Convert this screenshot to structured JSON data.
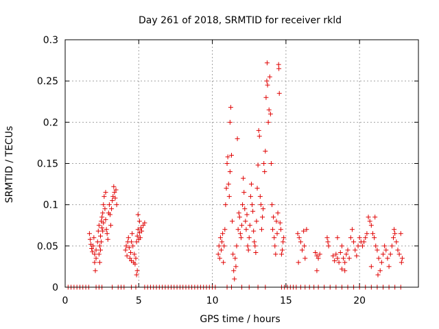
{
  "chart_data": {
    "type": "scatter",
    "title": "Day 261 of 2018, SRMTID for receiver rkld",
    "xlabel": "GPS time / hours",
    "ylabel": "SRMTID / TECUs",
    "xlim": [
      0,
      24
    ],
    "ylim": [
      0,
      0.3
    ],
    "xticks": [
      0,
      5,
      10,
      15,
      20
    ],
    "xtick_labels": [
      "0",
      "5",
      "10",
      "15",
      "20"
    ],
    "yticks": [
      0,
      0.05,
      0.1,
      0.15,
      0.2,
      0.25,
      0.3
    ],
    "ytick_labels": [
      "0",
      "0.05",
      "0.1",
      "0.15",
      "0.2",
      "0.25",
      "0.3"
    ],
    "grid": true,
    "marker": "plus",
    "series_color": "#e00000",
    "series": [
      {
        "name": "SRMTID",
        "points": [
          [
            0.2,
            0
          ],
          [
            0.4,
            0
          ],
          [
            0.6,
            0
          ],
          [
            0.8,
            0
          ],
          [
            1.0,
            0
          ],
          [
            1.2,
            0
          ],
          [
            1.4,
            0
          ],
          [
            1.6,
            0
          ],
          [
            2.1,
            0
          ],
          [
            2.3,
            0
          ],
          [
            2.5,
            0
          ],
          [
            3.2,
            0
          ],
          [
            3.6,
            0
          ],
          [
            3.8,
            0
          ],
          [
            4.0,
            0
          ],
          [
            4.5,
            0
          ],
          [
            4.8,
            0
          ],
          [
            5.4,
            0
          ],
          [
            5.6,
            0
          ],
          [
            5.8,
            0
          ],
          [
            6.0,
            0
          ],
          [
            6.2,
            0
          ],
          [
            6.4,
            0
          ],
          [
            6.6,
            0
          ],
          [
            6.8,
            0
          ],
          [
            7.0,
            0
          ],
          [
            7.2,
            0
          ],
          [
            7.4,
            0
          ],
          [
            7.6,
            0
          ],
          [
            7.8,
            0
          ],
          [
            8.0,
            0
          ],
          [
            8.2,
            0
          ],
          [
            8.4,
            0
          ],
          [
            8.6,
            0
          ],
          [
            8.8,
            0
          ],
          [
            9.0,
            0
          ],
          [
            9.2,
            0
          ],
          [
            9.4,
            0
          ],
          [
            9.6,
            0
          ],
          [
            9.8,
            0
          ],
          [
            10.0,
            0
          ],
          [
            10.2,
            0
          ],
          [
            11.0,
            0
          ],
          [
            11.3,
            0
          ],
          [
            12.0,
            0
          ],
          [
            12.5,
            0
          ],
          [
            13.1,
            0
          ],
          [
            13.6,
            0
          ],
          [
            14.7,
            0
          ],
          [
            14.9,
            0
          ],
          [
            15.1,
            0
          ],
          [
            15.3,
            0
          ],
          [
            15.5,
            0
          ],
          [
            15.7,
            0
          ],
          [
            16.0,
            0
          ],
          [
            16.3,
            0
          ],
          [
            16.6,
            0
          ],
          [
            16.9,
            0
          ],
          [
            17.2,
            0
          ],
          [
            17.6,
            0
          ],
          [
            18.0,
            0
          ],
          [
            18.4,
            0
          ],
          [
            18.8,
            0
          ],
          [
            19.2,
            0
          ],
          [
            19.6,
            0
          ],
          [
            20.0,
            0
          ],
          [
            20.4,
            0
          ],
          [
            20.8,
            0
          ],
          [
            21.2,
            0
          ],
          [
            21.6,
            0
          ],
          [
            22.0,
            0
          ],
          [
            22.4,
            0
          ],
          [
            22.8,
            0
          ],
          [
            1.65,
            0.065
          ],
          [
            1.7,
            0.058
          ],
          [
            1.75,
            0.052
          ],
          [
            1.8,
            0.047
          ],
          [
            1.85,
            0.043
          ],
          [
            1.9,
            0.05
          ],
          [
            1.95,
            0.06
          ],
          [
            2.0,
            0.04
          ],
          [
            2.0,
            0.03
          ],
          [
            2.05,
            0.02
          ],
          [
            2.1,
            0.045
          ],
          [
            2.1,
            0.035
          ],
          [
            2.2,
            0.055
          ],
          [
            2.25,
            0.068
          ],
          [
            2.3,
            0.075
          ],
          [
            2.35,
            0.05
          ],
          [
            2.4,
            0.062
          ],
          [
            2.45,
            0.08
          ],
          [
            2.5,
            0.072
          ],
          [
            2.5,
            0.085
          ],
          [
            2.55,
            0.09
          ],
          [
            2.6,
            0.1
          ],
          [
            2.6,
            0.078
          ],
          [
            2.65,
            0.11
          ],
          [
            2.7,
            0.095
          ],
          [
            2.75,
            0.082
          ],
          [
            2.8,
            0.07
          ],
          [
            2.85,
            0.065
          ],
          [
            2.9,
            0.058
          ],
          [
            2.95,
            0.09
          ],
          [
            3.0,
            0.1
          ],
          [
            3.05,
            0.088
          ],
          [
            3.1,
            0.075
          ],
          [
            3.15,
            0.095
          ],
          [
            3.2,
            0.105
          ],
          [
            3.25,
            0.11
          ],
          [
            3.3,
            0.122
          ],
          [
            3.35,
            0.115
          ],
          [
            3.4,
            0.108
          ],
          [
            3.45,
            0.118
          ],
          [
            3.5,
            0.1
          ],
          [
            2.3,
            0.04
          ],
          [
            2.35,
            0.03
          ],
          [
            2.4,
            0.045
          ],
          [
            2.45,
            0.055
          ],
          [
            2.55,
            0.068
          ],
          [
            2.75,
            0.115
          ],
          [
            4.1,
            0.045
          ],
          [
            4.15,
            0.05
          ],
          [
            4.2,
            0.038
          ],
          [
            4.25,
            0.055
          ],
          [
            4.3,
            0.06
          ],
          [
            4.35,
            0.048
          ],
          [
            4.4,
            0.035
          ],
          [
            4.45,
            0.042
          ],
          [
            4.5,
            0.055
          ],
          [
            4.55,
            0.065
          ],
          [
            4.6,
            0.05
          ],
          [
            4.65,
            0.03
          ],
          [
            4.7,
            0.04
          ],
          [
            4.75,
            0.028
          ],
          [
            4.8,
            0.035
          ],
          [
            4.85,
            0.055
          ],
          [
            4.9,
            0.062
          ],
          [
            4.95,
            0.07
          ],
          [
            5.0,
            0.058
          ],
          [
            5.05,
            0.066
          ],
          [
            5.1,
            0.06
          ],
          [
            5.15,
            0.072
          ],
          [
            5.2,
            0.068
          ],
          [
            5.3,
            0.075
          ],
          [
            5.4,
            0.078
          ],
          [
            4.95,
            0.088
          ],
          [
            5.05,
            0.08
          ],
          [
            4.9,
            0.02
          ],
          [
            4.85,
            0.015
          ],
          [
            4.5,
            0.032
          ],
          [
            10.4,
            0.04
          ],
          [
            10.45,
            0.05
          ],
          [
            10.5,
            0.035
          ],
          [
            10.55,
            0.06
          ],
          [
            10.6,
            0.045
          ],
          [
            10.65,
            0.055
          ],
          [
            10.7,
            0.065
          ],
          [
            10.75,
            0.03
          ],
          [
            10.8,
            0.05
          ],
          [
            10.85,
            0.07
          ],
          [
            10.9,
            0.1
          ],
          [
            10.95,
            0.12
          ],
          [
            11.0,
            0.15
          ],
          [
            11.05,
            0.158
          ],
          [
            11.1,
            0.125
          ],
          [
            11.15,
            0.11
          ],
          [
            11.2,
            0.2
          ],
          [
            11.25,
            0.218
          ],
          [
            11.2,
            0.14
          ],
          [
            11.3,
            0.16
          ],
          [
            11.35,
            0.08
          ],
          [
            11.4,
            0.04
          ],
          [
            11.45,
            0.02
          ],
          [
            11.5,
            0.01
          ],
          [
            11.55,
            0.035
          ],
          [
            11.6,
            0.025
          ],
          [
            11.65,
            0.05
          ],
          [
            11.7,
            0.18
          ],
          [
            11.75,
            0.07
          ],
          [
            11.8,
            0.09
          ],
          [
            11.85,
            0.085
          ],
          [
            11.9,
            0.065
          ],
          [
            11.95,
            0.06
          ],
          [
            12.0,
            0.075
          ],
          [
            12.05,
            0.1
          ],
          [
            12.1,
            0.132
          ],
          [
            12.15,
            0.115
          ],
          [
            12.2,
            0.095
          ],
          [
            12.25,
            0.08
          ],
          [
            12.3,
            0.07
          ],
          [
            12.35,
            0.088
          ],
          [
            12.4,
            0.05
          ],
          [
            12.45,
            0.045
          ],
          [
            12.5,
            0.06
          ],
          [
            12.55,
            0.075
          ],
          [
            12.6,
            0.11
          ],
          [
            12.65,
            0.125
          ],
          [
            12.7,
            0.1
          ],
          [
            12.75,
            0.092
          ],
          [
            12.8,
            0.068
          ],
          [
            12.85,
            0.055
          ],
          [
            12.9,
            0.05
          ],
          [
            12.95,
            0.042
          ],
          [
            13.0,
            0.08
          ],
          [
            13.05,
            0.12
          ],
          [
            13.1,
            0.148
          ],
          [
            13.15,
            0.19
          ],
          [
            13.2,
            0.183
          ],
          [
            13.25,
            0.11
          ],
          [
            13.3,
            0.1
          ],
          [
            13.35,
            0.07
          ],
          [
            13.4,
            0.085
          ],
          [
            13.45,
            0.095
          ],
          [
            13.5,
            0.15
          ],
          [
            13.55,
            0.14
          ],
          [
            13.6,
            0.165
          ],
          [
            13.65,
            0.23
          ],
          [
            13.7,
            0.25
          ],
          [
            13.72,
            0.272
          ],
          [
            13.75,
            0.245
          ],
          [
            13.8,
            0.2
          ],
          [
            13.85,
            0.215
          ],
          [
            13.9,
            0.255
          ],
          [
            13.95,
            0.21
          ],
          [
            14.0,
            0.15
          ],
          [
            14.05,
            0.1
          ],
          [
            14.1,
            0.07
          ],
          [
            14.15,
            0.085
          ],
          [
            14.2,
            0.06
          ],
          [
            14.25,
            0.05
          ],
          [
            14.3,
            0.04
          ],
          [
            14.35,
            0.08
          ],
          [
            14.4,
            0.065
          ],
          [
            14.45,
            0.09
          ],
          [
            14.5,
            0.27
          ],
          [
            14.52,
            0.265
          ],
          [
            14.55,
            0.235
          ],
          [
            14.6,
            0.078
          ],
          [
            14.65,
            0.07
          ],
          [
            14.7,
            0.04
          ],
          [
            14.75,
            0.045
          ],
          [
            14.8,
            0.055
          ],
          [
            14.85,
            0.06
          ],
          [
            15.8,
            0.065
          ],
          [
            15.9,
            0.06
          ],
          [
            16.0,
            0.055
          ],
          [
            16.1,
            0.045
          ],
          [
            16.2,
            0.068
          ],
          [
            16.25,
            0.05
          ],
          [
            16.3,
            0.035
          ],
          [
            15.85,
            0.03
          ],
          [
            16.4,
            0.07
          ],
          [
            17.0,
            0.042
          ],
          [
            17.1,
            0.038
          ],
          [
            17.2,
            0.035
          ],
          [
            17.3,
            0.04
          ],
          [
            17.1,
            0.02
          ],
          [
            17.8,
            0.06
          ],
          [
            17.85,
            0.055
          ],
          [
            17.9,
            0.05
          ],
          [
            18.2,
            0.038
          ],
          [
            18.3,
            0.032
          ],
          [
            18.4,
            0.04
          ],
          [
            18.5,
            0.035
          ],
          [
            18.6,
            0.03
          ],
          [
            18.7,
            0.042
          ],
          [
            18.8,
            0.05
          ],
          [
            18.9,
            0.035
          ],
          [
            19.0,
            0.03
          ],
          [
            19.1,
            0.04
          ],
          [
            19.2,
            0.045
          ],
          [
            19.3,
            0.035
          ],
          [
            19.4,
            0.06
          ],
          [
            19.5,
            0.07
          ],
          [
            19.6,
            0.055
          ],
          [
            19.7,
            0.045
          ],
          [
            19.8,
            0.038
          ],
          [
            19.9,
            0.05
          ],
          [
            20.0,
            0.06
          ],
          [
            20.1,
            0.055
          ],
          [
            18.8,
            0.022
          ],
          [
            19.0,
            0.02
          ],
          [
            18.5,
            0.06
          ],
          [
            20.2,
            0.05
          ],
          [
            20.3,
            0.055
          ],
          [
            20.4,
            0.06
          ],
          [
            20.5,
            0.065
          ],
          [
            20.6,
            0.085
          ],
          [
            20.7,
            0.08
          ],
          [
            20.8,
            0.075
          ],
          [
            20.9,
            0.065
          ],
          [
            21.0,
            0.06
          ],
          [
            21.05,
            0.085
          ],
          [
            21.1,
            0.05
          ],
          [
            21.2,
            0.045
          ],
          [
            21.3,
            0.035
          ],
          [
            21.4,
            0.02
          ],
          [
            21.5,
            0.03
          ],
          [
            21.6,
            0.04
          ],
          [
            21.7,
            0.05
          ],
          [
            21.8,
            0.045
          ],
          [
            21.9,
            0.035
          ],
          [
            22.0,
            0.025
          ],
          [
            22.1,
            0.04
          ],
          [
            22.2,
            0.05
          ],
          [
            22.3,
            0.06
          ],
          [
            22.4,
            0.065
          ],
          [
            22.5,
            0.055
          ],
          [
            22.6,
            0.045
          ],
          [
            22.7,
            0.04
          ],
          [
            22.8,
            0.065
          ],
          [
            22.85,
            0.03
          ],
          [
            22.9,
            0.035
          ],
          [
            21.25,
            0.015
          ],
          [
            20.8,
            0.025
          ],
          [
            22.35,
            0.07
          ]
        ]
      }
    ]
  }
}
